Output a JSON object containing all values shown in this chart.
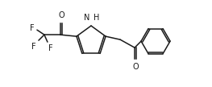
{
  "bg_color": "#ffffff",
  "line_color": "#1a1a1a",
  "line_width": 1.1,
  "font_size": 7.0,
  "figsize": [
    2.63,
    1.08
  ],
  "dpi": 100,
  "xlim": [
    0,
    263
  ],
  "ylim": [
    0,
    108
  ]
}
